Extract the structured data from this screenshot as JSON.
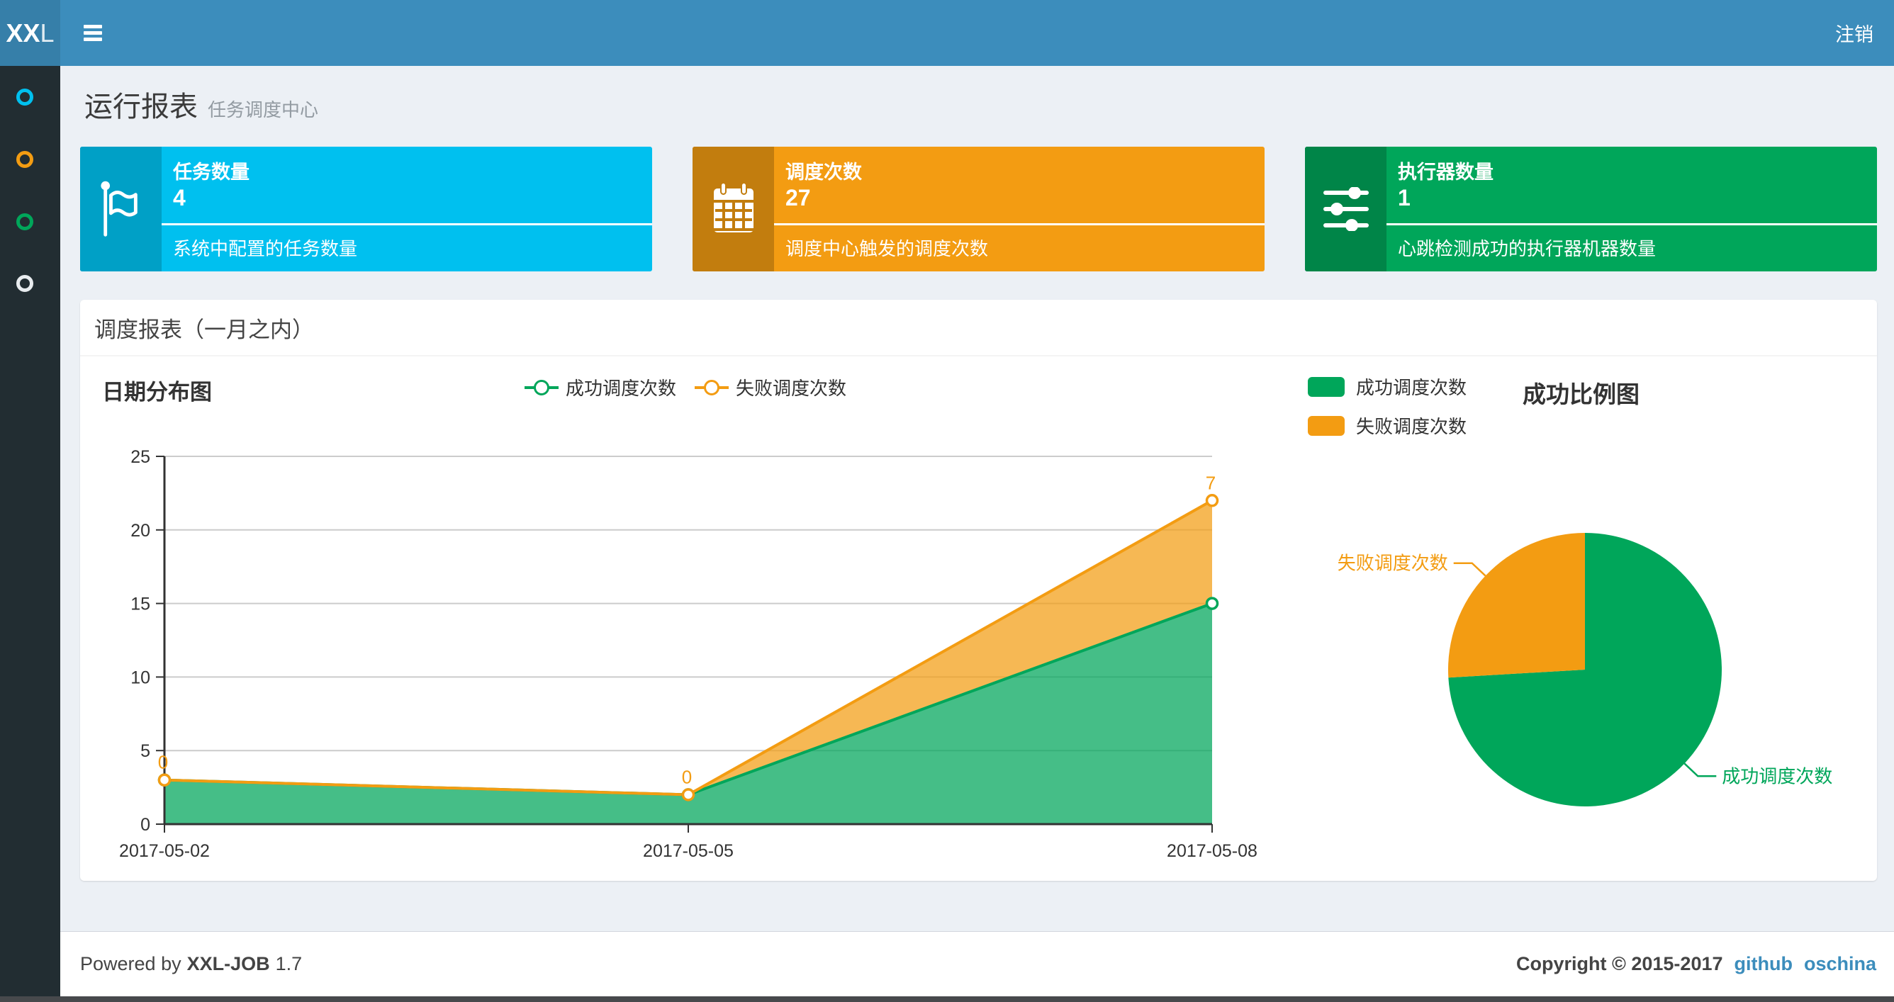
{
  "navbar": {
    "logo_primary": "XX",
    "logo_secondary": "L",
    "logout_label": "注销"
  },
  "sidebar": {
    "items": [
      {
        "icon": "circle-outline-icon",
        "color": "#00c0ef"
      },
      {
        "icon": "circle-outline-icon",
        "color": "#f39c12"
      },
      {
        "icon": "circle-outline-icon",
        "color": "#00a65a"
      },
      {
        "icon": "circle-outline-icon",
        "color": "#e8ecef"
      }
    ]
  },
  "page_header": {
    "title": "运行报表",
    "subtitle": "任务调度中心"
  },
  "stat_cards": [
    {
      "title": "任务数量",
      "value": "4",
      "desc": "系统中配置的任务数量",
      "accent": "#00c0ef",
      "accent_dark": "#00a0c6",
      "icon": "flag-icon"
    },
    {
      "title": "调度次数",
      "value": "27",
      "desc": "调度中心触发的调度次数",
      "accent": "#f39c12",
      "accent_dark": "#c27d0e",
      "icon": "calendar-icon"
    },
    {
      "title": "执行器数量",
      "value": "1",
      "desc": "心跳检测成功的执行器机器数量",
      "accent": "#00a65a",
      "accent_dark": "#008548",
      "icon": "sliders-icon"
    }
  ],
  "panel": {
    "title": "调度报表（一月之内）"
  },
  "chart_data": [
    {
      "type": "area",
      "title": "日期分布图",
      "stacked": true,
      "categories": [
        "2017-05-02",
        "2017-05-05",
        "2017-05-08"
      ],
      "series": [
        {
          "name": "成功调度次数",
          "color": "#00a65a",
          "values": [
            3,
            2,
            15
          ],
          "point_labels": false
        },
        {
          "name": "失败调度次数",
          "color": "#f39c12",
          "values": [
            0,
            0,
            7
          ],
          "point_labels": true
        }
      ],
      "ylim": [
        0,
        25
      ],
      "yticks": [
        0,
        5,
        10,
        15,
        20,
        25
      ],
      "grid": "horizontal",
      "legend_position": "top-center"
    },
    {
      "type": "pie",
      "title": "成功比例图",
      "legend_position": "top-left",
      "slices": [
        {
          "label": "成功调度次数",
          "value": 20,
          "color": "#00a65a"
        },
        {
          "label": "失败调度次数",
          "value": 7,
          "color": "#f39c12"
        }
      ]
    }
  ],
  "footer": {
    "powered_by": "Powered by",
    "brand": "XXL-JOB",
    "version": "1.7",
    "copyright": "Copyright © 2015-2017",
    "links": [
      {
        "label": "github"
      },
      {
        "label": "oschina"
      }
    ],
    "link_color": "#3c8dbc"
  },
  "colors": {
    "navbar": "#3c8dbc",
    "logo_bg": "#367fa9",
    "sidebar": "#222d32",
    "content_bg": "#ecf0f5"
  }
}
